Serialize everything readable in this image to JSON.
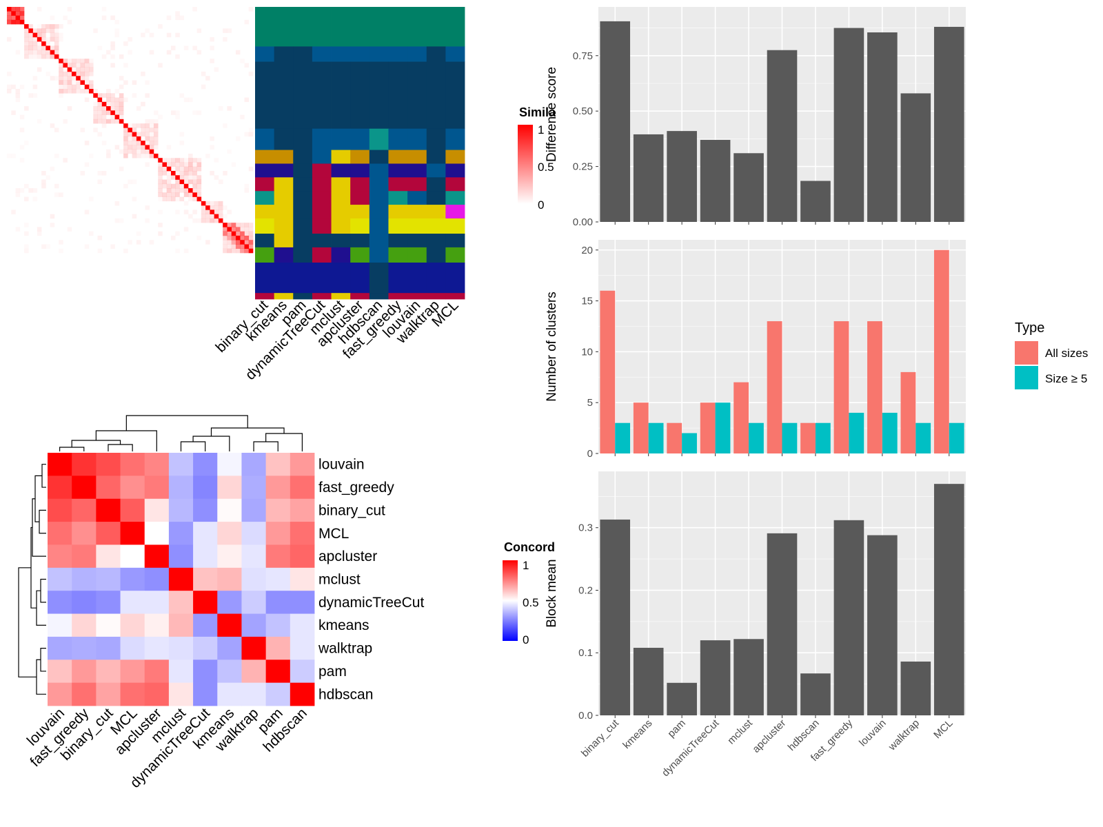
{
  "colors": {
    "panel_bg": "#ebebeb",
    "grid": "#ffffff",
    "bar": "#595959",
    "all_sizes": "#F8766D",
    "size_ge5": "#00BFC4",
    "sim_high": "#ff0000",
    "conc_low": "#0000ff",
    "conc_mid": "#ffffff",
    "conc_high": "#ff0000",
    "class_palette": [
      "#008066",
      "#00568f",
      "#073d62",
      "#c78e00",
      "#1f0f8f",
      "#e5cc00",
      "#b3063b",
      "#0b958a",
      "#e3e300",
      "#45a010",
      "#0e1893",
      "#2d0099",
      "#e619e6",
      "#a01010"
    ]
  },
  "legend_similarity": {
    "title": "Simila",
    "ticks": [
      "1",
      "0.5",
      "0"
    ]
  },
  "legend_concordance": {
    "title": "Concord",
    "ticks": [
      "1",
      "0.5",
      "0"
    ]
  },
  "class_matrix_columns": [
    "binary_cut",
    "kmeans",
    "pam",
    "dynamicTreeCut",
    "mclust",
    "apcluster",
    "hdbscan",
    "fast_greedy",
    "louvain",
    "walktrap",
    "MCL"
  ],
  "chart_data": [
    {
      "type": "heatmap",
      "name": "similarity",
      "note_size": 57,
      "legend": {
        "title": "Simila",
        "ticks": [
          "1",
          "0.5",
          "0"
        ]
      }
    },
    {
      "type": "heatmap",
      "name": "classes",
      "columns": [
        "binary_cut",
        "kmeans",
        "pam",
        "dynamicTreeCut",
        "mclust",
        "apcluster",
        "hdbscan",
        "fast_greedy",
        "louvain",
        "walktrap",
        "MCL"
      ]
    },
    {
      "type": "heatmap",
      "name": "concordance",
      "labels": [
        "louvain",
        "fast_greedy",
        "binary_cut",
        "MCL",
        "apcluster",
        "mclust",
        "dynamicTreeCut",
        "kmeans",
        "walktrap",
        "pam",
        "hdbscan"
      ],
      "values": [
        [
          1.0,
          0.9,
          0.85,
          0.78,
          0.74,
          0.38,
          0.28,
          0.48,
          0.33,
          0.62,
          0.7
        ],
        [
          0.9,
          1.0,
          0.8,
          0.72,
          0.76,
          0.35,
          0.26,
          0.58,
          0.34,
          0.7,
          0.78
        ],
        [
          0.85,
          0.8,
          1.0,
          0.82,
          0.55,
          0.36,
          0.28,
          0.51,
          0.33,
          0.64,
          0.68
        ],
        [
          0.78,
          0.72,
          0.82,
          1.0,
          0.5,
          0.3,
          0.45,
          0.58,
          0.43,
          0.7,
          0.78
        ],
        [
          0.74,
          0.76,
          0.55,
          0.5,
          1.0,
          0.28,
          0.45,
          0.53,
          0.45,
          0.76,
          0.8
        ],
        [
          0.38,
          0.35,
          0.36,
          0.3,
          0.28,
          1.0,
          0.62,
          0.64,
          0.44,
          0.45,
          0.55
        ],
        [
          0.28,
          0.26,
          0.28,
          0.45,
          0.45,
          0.62,
          1.0,
          0.3,
          0.4,
          0.28,
          0.28
        ],
        [
          0.48,
          0.58,
          0.51,
          0.58,
          0.53,
          0.64,
          0.3,
          1.0,
          0.32,
          0.38,
          0.45
        ],
        [
          0.33,
          0.34,
          0.33,
          0.43,
          0.45,
          0.44,
          0.4,
          0.32,
          1.0,
          0.65,
          0.45
        ],
        [
          0.62,
          0.7,
          0.64,
          0.7,
          0.76,
          0.45,
          0.28,
          0.38,
          0.65,
          1.0,
          0.4
        ],
        [
          0.7,
          0.78,
          0.68,
          0.78,
          0.8,
          0.55,
          0.28,
          0.45,
          0.45,
          0.4,
          1.0
        ]
      ],
      "legend": {
        "title": "Concord",
        "ticks": [
          "1",
          "0.5",
          "0"
        ]
      }
    },
    {
      "type": "bar",
      "name": "difference_score",
      "categories": [
        "binary_cut",
        "kmeans",
        "pam",
        "dynamicTreeCut",
        "mclust",
        "apcluster",
        "hdbscan",
        "fast_greedy",
        "louvain",
        "walktrap",
        "MCL"
      ],
      "values": [
        0.905,
        0.395,
        0.41,
        0.37,
        0.31,
        0.775,
        0.185,
        0.875,
        0.855,
        0.58,
        0.88
      ],
      "ylabel": "Difference score",
      "ylim": [
        0,
        0.97
      ],
      "yticks": [
        "0.00",
        "0.25",
        "0.50",
        "0.75"
      ],
      "grid": true
    },
    {
      "type": "bar",
      "name": "number_of_clusters",
      "categories": [
        "binary_cut",
        "kmeans",
        "pam",
        "dynamicTreeCut",
        "mclust",
        "apcluster",
        "hdbscan",
        "fast_greedy",
        "louvain",
        "walktrap",
        "MCL"
      ],
      "series": [
        {
          "name": "All sizes",
          "values": [
            16,
            5,
            3,
            5,
            7,
            13,
            3,
            13,
            13,
            8,
            20
          ]
        },
        {
          "name": "Size ≥ 5",
          "values": [
            3,
            3,
            2,
            5,
            3,
            3,
            3,
            4,
            4,
            3,
            3
          ]
        }
      ],
      "ylabel": "Number of clusters",
      "ylim": [
        0,
        21
      ],
      "yticks": [
        "0",
        "5",
        "10",
        "15",
        "20"
      ],
      "legend": {
        "title": "Type",
        "position": "right"
      },
      "grid": true
    },
    {
      "type": "bar",
      "name": "block_mean",
      "categories": [
        "binary_cut",
        "kmeans",
        "pam",
        "dynamicTreeCut",
        "mclust",
        "apcluster",
        "hdbscan",
        "fast_greedy",
        "louvain",
        "walktrap",
        "MCL"
      ],
      "values": [
        0.313,
        0.108,
        0.052,
        0.12,
        0.122,
        0.291,
        0.067,
        0.312,
        0.288,
        0.086,
        0.37
      ],
      "ylabel": "Block mean",
      "ylim": [
        0,
        0.39
      ],
      "yticks": [
        "0.0",
        "0.1",
        "0.2",
        "0.3"
      ],
      "grid": true
    }
  ]
}
